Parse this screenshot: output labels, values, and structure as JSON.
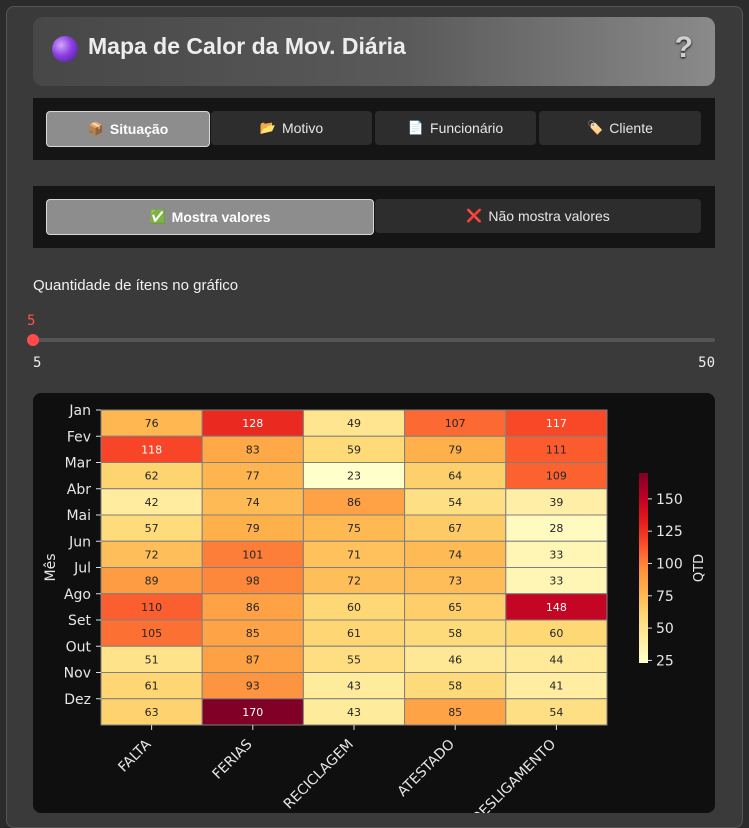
{
  "header": {
    "title": "Mapa de Calor da Mov. Diária",
    "help_icon": "?"
  },
  "tabs": [
    {
      "label": "Situação",
      "icon": "📦",
      "active": true
    },
    {
      "label": "Motivo",
      "icon": "📂",
      "active": false
    },
    {
      "label": "Funcionário",
      "icon": "📄",
      "active": false
    },
    {
      "label": "Cliente",
      "icon": "🏷️",
      "active": false
    }
  ],
  "values_toggle": [
    {
      "label": "Mostra valores",
      "icon": "✅",
      "active": true
    },
    {
      "label": "Não mostra valores",
      "icon": "❌",
      "active": false
    }
  ],
  "slider": {
    "label": "Quantidade de ítens no gráfico",
    "value": 5,
    "min": 5,
    "max": 50
  },
  "colors": {
    "accent": "#ff4b4b"
  },
  "chart_data": {
    "type": "heatmap",
    "rows": [
      "Jan",
      "Fev",
      "Mar",
      "Abr",
      "Mai",
      "Jun",
      "Jul",
      "Ago",
      "Set",
      "Out",
      "Nov",
      "Dez"
    ],
    "columns": [
      "FALTA",
      "FERIAS",
      "RECICLAGEM",
      "ATESTADO",
      "DESLIGAMENTO"
    ],
    "values": [
      [
        76,
        128,
        49,
        107,
        117
      ],
      [
        118,
        83,
        59,
        79,
        111
      ],
      [
        62,
        77,
        23,
        64,
        109
      ],
      [
        42,
        74,
        86,
        54,
        39
      ],
      [
        57,
        79,
        75,
        67,
        28
      ],
      [
        72,
        101,
        71,
        74,
        33
      ],
      [
        89,
        98,
        72,
        73,
        33
      ],
      [
        110,
        86,
        60,
        65,
        148
      ],
      [
        105,
        85,
        61,
        58,
        60
      ],
      [
        51,
        87,
        55,
        46,
        44
      ],
      [
        61,
        93,
        43,
        58,
        41
      ],
      [
        63,
        170,
        43,
        85,
        54
      ]
    ],
    "ylabel": "Mês",
    "colorbar_label": "QTD",
    "colorbar_ticks": [
      25,
      50,
      75,
      100,
      125,
      150
    ],
    "colormap": "YlOrRd",
    "value_range": [
      23,
      170
    ],
    "show_values": true
  }
}
